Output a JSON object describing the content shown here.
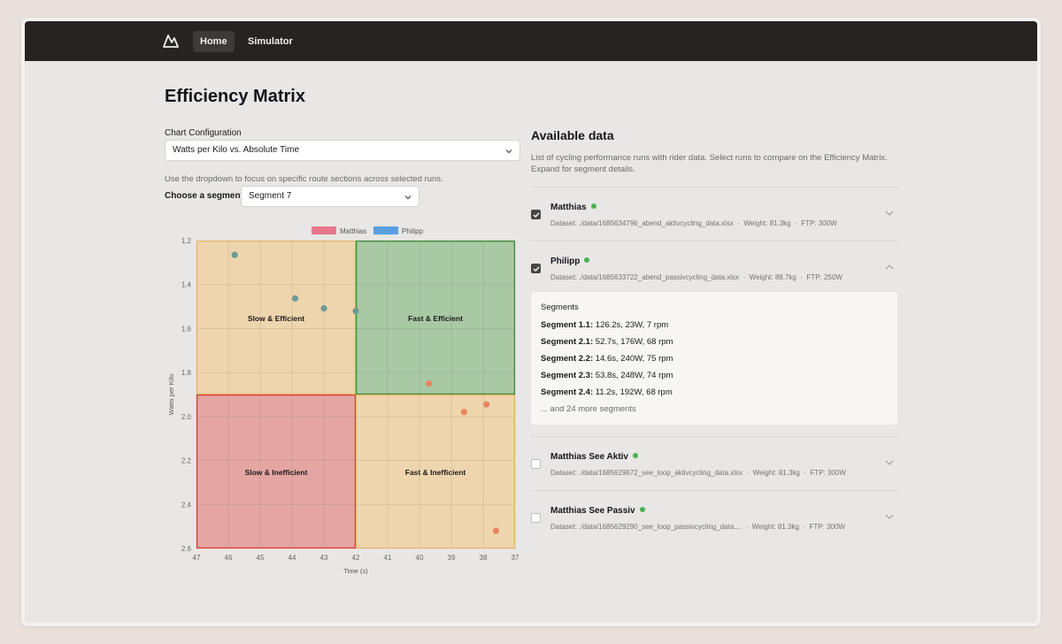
{
  "nav": {
    "logo_icon": "mountain-logo-icon",
    "items": [
      {
        "label": "Home",
        "active": true
      },
      {
        "label": "Simulator",
        "active": false
      }
    ]
  },
  "page": {
    "title": "Efficiency Matrix"
  },
  "config": {
    "label": "Chart Configuration",
    "selected": "Watts per Kilo vs. Absolute Time",
    "help": "Use the dropdown to focus on specific route sections across selected runs.",
    "segment_label": "Choose a segment",
    "segment_selected": "Segment 7"
  },
  "chart_data": {
    "type": "scatter",
    "xlabel": "Time (s)",
    "ylabel": "Watts per Kilo",
    "xlim": [
      47,
      37
    ],
    "ylim": [
      1.2,
      2.6
    ],
    "x_reversed": true,
    "y_reversed": true,
    "x_ticks": [
      47,
      46,
      45,
      44,
      43,
      42,
      41,
      40,
      39,
      38,
      37
    ],
    "y_ticks": [
      1.2,
      1.4,
      1.6,
      1.8,
      2.0,
      2.2,
      2.4,
      2.6
    ],
    "x_tick_labels": [
      "47",
      "46",
      "45",
      "44",
      "43",
      "42",
      "41",
      "40",
      "39",
      "38",
      "37"
    ],
    "y_tick_labels": [
      "1.2",
      "1.4",
      "1.6",
      "1.8",
      "2.0",
      "2.2",
      "2.4",
      "2.6"
    ],
    "grid": true,
    "legend": {
      "placement": "top-center",
      "entries": [
        {
          "name": "Matthias",
          "color": "#e8778c"
        },
        {
          "name": "Philipp",
          "color": "#5b9fe3"
        }
      ]
    },
    "quadrants": [
      {
        "label": "Slow & Efficient",
        "x": [
          47,
          42
        ],
        "y": [
          1.2,
          1.9
        ],
        "color": "#eed5ad",
        "border": "#e7b86d"
      },
      {
        "label": "Fast & Efficient",
        "x": [
          42,
          37
        ],
        "y": [
          1.2,
          1.9
        ],
        "color": "#a8c9a4",
        "border": "#3f8a3a"
      },
      {
        "label": "Slow & Inefficient",
        "x": [
          47,
          42
        ],
        "y": [
          1.9,
          2.6
        ],
        "color": "#e5a6a3",
        "border": "#d93c33"
      },
      {
        "label": "Fast & Inefficient",
        "x": [
          42,
          37
        ],
        "y": [
          1.9,
          2.6
        ],
        "color": "#eed5ad",
        "border": "#e7b86d"
      }
    ],
    "series": [
      {
        "color": "#6f9a93",
        "points": [
          {
            "x": 45.8,
            "y": 1.265
          },
          {
            "x": 43.9,
            "y": 1.463
          },
          {
            "x": 43.0,
            "y": 1.508
          },
          {
            "x": 42.0,
            "y": 1.52
          }
        ]
      },
      {
        "color": "#e98461",
        "points": [
          {
            "x": 39.7,
            "y": 1.85
          },
          {
            "x": 38.6,
            "y": 1.98
          },
          {
            "x": 37.9,
            "y": 1.945
          },
          {
            "x": 37.6,
            "y": 2.52
          }
        ]
      }
    ]
  },
  "available": {
    "title": "Available data",
    "description": "List of cycling performance runs with rider data. Select runs to compare on the Efficiency Matrix. Expand for segment details.",
    "runs": [
      {
        "name": "Matthias",
        "checked": true,
        "dataset": "Dataset: ./data/1685634796_abend_aktivcycling_data.xlsx",
        "weight": "Weight: 81.3kg",
        "ftp": "FTP: 300W",
        "expanded": false
      },
      {
        "name": "Philipp",
        "checked": true,
        "dataset": "Dataset: ./data/1685633722_abend_passivcycling_data.xlsx",
        "weight": "Weight: 88.7kg",
        "ftp": "FTP: 250W",
        "expanded": true
      },
      {
        "name": "Matthias See Aktiv",
        "checked": false,
        "dataset": "Dataset: ./data/1685629672_see_loop_aktivcycling_data.xlsx",
        "weight": "Weight: 81.3kg",
        "ftp": "FTP: 300W",
        "expanded": false
      },
      {
        "name": "Matthias See Passiv",
        "checked": false,
        "dataset": "Dataset: ./data/1685629290_see_loop_passivcycling_data....",
        "weight": "Weight: 81.3kg",
        "ftp": "FTP: 300W",
        "expanded": false
      }
    ],
    "segments": {
      "header": "Segments",
      "items": [
        {
          "name": "Segment 1.1:",
          "detail": " 126.2s, 23W, 7 rpm"
        },
        {
          "name": "Segment 2.1:",
          "detail": " 52.7s, 176W, 68 rpm"
        },
        {
          "name": "Segment 2.2:",
          "detail": " 14.6s, 240W, 75 rpm"
        },
        {
          "name": "Segment 2.3:",
          "detail": " 53.8s, 248W, 74 rpm"
        },
        {
          "name": "Segment 2.4:",
          "detail": " 11.2s, 192W, 68 rpm"
        }
      ],
      "more": "... and 24 more segments"
    },
    "separator": "·"
  }
}
